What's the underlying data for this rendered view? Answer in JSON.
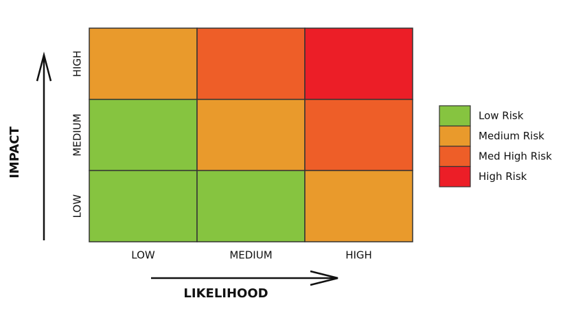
{
  "y_axis": {
    "title": "IMPACT",
    "labels": [
      "HIGH",
      "MEDIUM",
      "LOW"
    ]
  },
  "x_axis": {
    "title": "LIKELIHOOD",
    "labels": [
      "LOW",
      "MEDIUM",
      "HIGH"
    ]
  },
  "legend": [
    {
      "label": "Low Risk",
      "color": "#86c440"
    },
    {
      "label": "Medium Risk",
      "color": "#e99a2c"
    },
    {
      "label": "Med High Risk",
      "color": "#ee5e28"
    },
    {
      "label": "High Risk",
      "color": "#ec1e27"
    }
  ],
  "grid": {
    "rows": [
      [
        "#e99a2c",
        "#ee5e28",
        "#ec1e27"
      ],
      [
        "#86c440",
        "#e99a2c",
        "#ee5e28"
      ],
      [
        "#86c440",
        "#86c440",
        "#e99a2c"
      ]
    ]
  }
}
